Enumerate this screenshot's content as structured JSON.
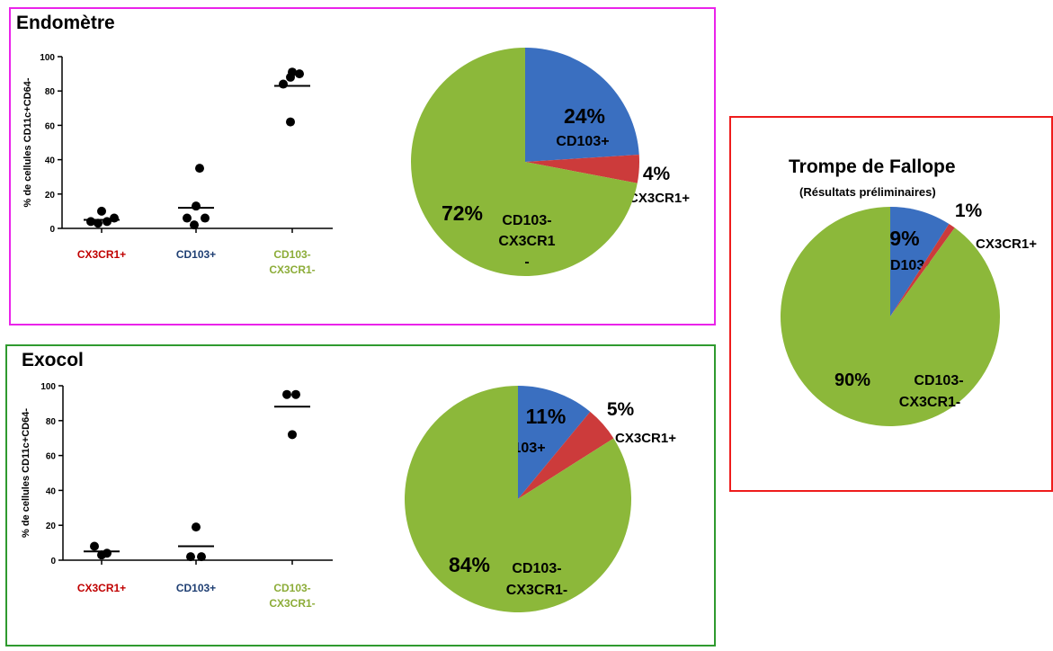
{
  "colors": {
    "blue": "#3a6fc0",
    "red": "#cc3b3b",
    "green": "#8cb83a",
    "label_red": "#c00000",
    "label_blue": "#1f3f73",
    "label_green": "#8cac38"
  },
  "panels": {
    "endometre": {
      "title": "Endomètre"
    },
    "exocol": {
      "title": "Exocol"
    },
    "trompe": {
      "title": "Trompe de Fallope",
      "subtitle": "(Résultats préliminaires)"
    }
  },
  "chart_data": [
    {
      "id": "endometre-scatter",
      "type": "scatter",
      "ylabel": "% de cellules CD11c+CD64-",
      "ylim": [
        0,
        100
      ],
      "yticks": [
        "0",
        "20",
        "40",
        "60",
        "80",
        "100"
      ],
      "categories": [
        {
          "lines": [
            "CX3CR1+"
          ],
          "color": "label_red"
        },
        {
          "lines": [
            "CD103+"
          ],
          "color": "label_blue"
        },
        {
          "lines": [
            "CD103-",
            "CX3CR1-"
          ],
          "color": "label_green"
        }
      ],
      "points": [
        [
          [
            -0.3,
            4
          ],
          [
            -0.1,
            3
          ],
          [
            0,
            10
          ],
          [
            0.15,
            4
          ],
          [
            0.35,
            6
          ]
        ],
        [
          [
            -0.25,
            6
          ],
          [
            0.1,
            35
          ],
          [
            0,
            13
          ],
          [
            -0.05,
            2
          ],
          [
            0.25,
            6
          ]
        ],
        [
          [
            -0.25,
            84
          ],
          [
            -0.05,
            88
          ],
          [
            0.2,
            90
          ],
          [
            0,
            91
          ],
          [
            -0.05,
            62
          ]
        ]
      ],
      "medians": [
        5,
        12,
        83
      ]
    },
    {
      "id": "endometre-pie",
      "type": "pie",
      "slices": [
        {
          "value": 24,
          "pct": "24%",
          "label": [
            "CD103+"
          ],
          "color": "blue"
        },
        {
          "value": 4,
          "pct": "4%",
          "label": [
            "CX3CR1+"
          ],
          "color": "red"
        },
        {
          "value": 72,
          "pct": "72%",
          "label": [
            "CD103-",
            "CX3CR1",
            "-"
          ],
          "color": "green"
        }
      ]
    },
    {
      "id": "exocol-scatter",
      "type": "scatter",
      "ylabel": "% de cellules CD11c+CD64-",
      "ylim": [
        0,
        100
      ],
      "yticks": [
        "0",
        "20",
        "40",
        "60",
        "80",
        "100"
      ],
      "categories": [
        {
          "lines": [
            "CX3CR1+"
          ],
          "color": "label_red"
        },
        {
          "lines": [
            "CD103+"
          ],
          "color": "label_blue"
        },
        {
          "lines": [
            "CD103-",
            "CX3CR1-"
          ],
          "color": "label_green"
        }
      ],
      "points": [
        [
          [
            -0.2,
            8
          ],
          [
            0,
            3
          ],
          [
            0.15,
            4
          ]
        ],
        [
          [
            0,
            19
          ],
          [
            -0.15,
            2
          ],
          [
            0.15,
            2
          ]
        ],
        [
          [
            -0.15,
            95
          ],
          [
            0.1,
            95
          ],
          [
            0,
            72
          ]
        ]
      ],
      "medians": [
        5,
        8,
        88
      ]
    },
    {
      "id": "exocol-pie",
      "type": "pie",
      "slices": [
        {
          "value": 11,
          "pct": "11%",
          "label": [
            "CD103+"
          ],
          "color": "blue"
        },
        {
          "value": 5,
          "pct": "5%",
          "label": [
            "CX3CR1+"
          ],
          "color": "red"
        },
        {
          "value": 84,
          "pct": "84%",
          "label": [
            "CD103-",
            "CX3CR1-"
          ],
          "color": "green"
        }
      ]
    },
    {
      "id": "trompe-pie",
      "type": "pie",
      "slices": [
        {
          "value": 9,
          "pct": "9%",
          "label": [
            "CD103+"
          ],
          "color": "blue"
        },
        {
          "value": 1,
          "pct": "1%",
          "label": [
            "CX3CR1+"
          ],
          "color": "red"
        },
        {
          "value": 90,
          "pct": "90%",
          "label": [
            "CD103-",
            "CX3CR1-"
          ],
          "color": "green"
        }
      ]
    }
  ]
}
